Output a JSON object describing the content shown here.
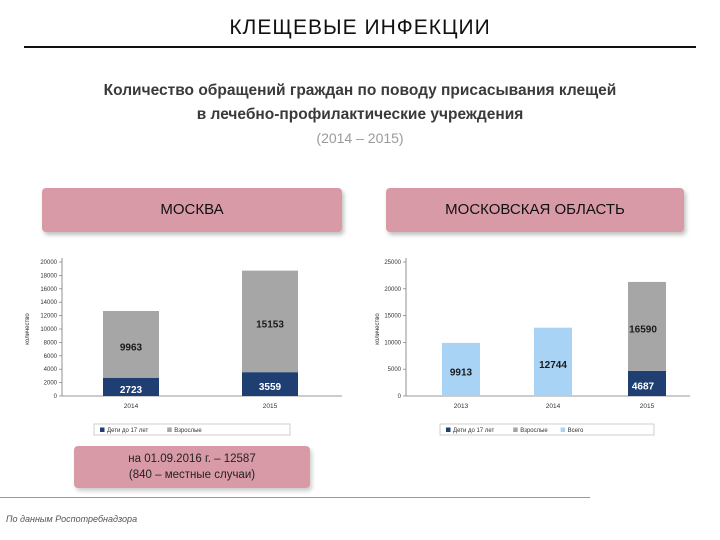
{
  "page": {
    "title": "КЛЕЩЕВЫЕ ИНФЕКЦИИ",
    "heading_line1": "Количество обращений граждан по поводу присасывания клещей",
    "heading_line2": "в лечебно-профилактические учреждения",
    "period": "(2014 – 2015)",
    "region_left": "МОСКВА",
    "region_right": "МОСКОВСКАЯ ОБЛАСТЬ",
    "note_line1": "на 01.09.2016 г. – 12587",
    "note_line2": "(840 – местные случаи)",
    "source": "По данным Роспотребнадзора"
  },
  "colors": {
    "children": "#1f3f73",
    "adults": "#a6a6a6",
    "total": "#a9d3f5",
    "region_box": "#d99aa8"
  },
  "chart_data": [
    {
      "type": "bar",
      "stacked": true,
      "region": "МОСКВА",
      "categories": [
        "2014",
        "2015"
      ],
      "ylabel": "количество",
      "ylim": [
        0,
        20000
      ],
      "yticks": [
        0,
        2000,
        4000,
        6000,
        8000,
        10000,
        12000,
        14000,
        16000,
        18000,
        20000
      ],
      "series": [
        {
          "name": "Дети до 17 лет",
          "values": [
            2723,
            3559
          ],
          "color": "#1f3f73"
        },
        {
          "name": "Взрослые",
          "values": [
            9963,
            15153
          ],
          "color": "#a6a6a6"
        }
      ],
      "legend_position": "bottom",
      "grid": false
    },
    {
      "type": "bar",
      "stacked": true,
      "region": "МОСКОВСКАЯ ОБЛАСТЬ",
      "categories": [
        "2013",
        "2014",
        "2015"
      ],
      "ylabel": "количество",
      "ylim": [
        0,
        25000
      ],
      "yticks": [
        0,
        5000,
        10000,
        15000,
        20000,
        25000
      ],
      "series": [
        {
          "name": "Дети до 17 лет",
          "values": [
            null,
            null,
            4687
          ],
          "color": "#1f3f73"
        },
        {
          "name": "Взрослые",
          "values": [
            null,
            null,
            16590
          ],
          "color": "#a6a6a6"
        },
        {
          "name": "Всего",
          "values": [
            9913,
            12744,
            null
          ],
          "color": "#a9d3f5"
        }
      ],
      "legend_position": "bottom",
      "grid": false
    }
  ]
}
